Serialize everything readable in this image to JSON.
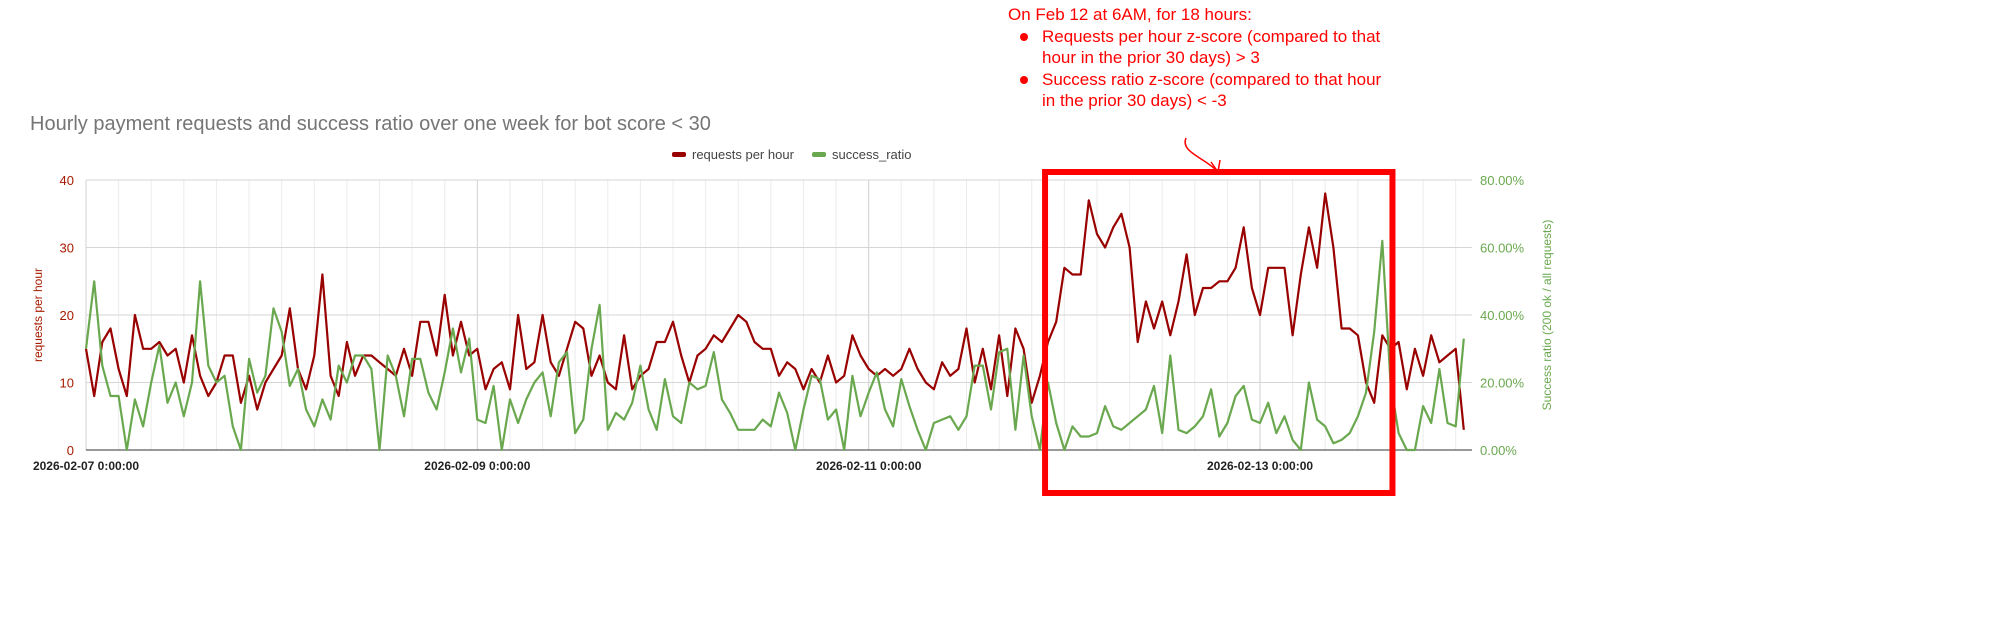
{
  "chart_data": {
    "type": "line",
    "title": "Hourly payment requests and success ratio over one week for bot score < 30",
    "x_start": "2026-02-07 0:00:00",
    "x_unit": "hour",
    "x_tick_labels": [
      "2026-02-07 0:00:00",
      "2026-02-09 0:00:00",
      "2026-02-11 0:00:00",
      "2026-02-13 0:00:00"
    ],
    "y_left": {
      "label": "requests per hour",
      "range": [
        0,
        40
      ],
      "ticks": [
        "0",
        "10",
        "20",
        "30",
        "40"
      ]
    },
    "y_right": {
      "label": "Success ratio (200 ok / all requests)",
      "range": [
        0,
        80
      ],
      "ticks": [
        "0.00%",
        "20.00%",
        "40.00%",
        "60.00%",
        "80.00%"
      ]
    },
    "grid": true,
    "legend_position": "top",
    "series": [
      {
        "name": "requests per hour",
        "axis": "left",
        "color": "#990000",
        "values": [
          15,
          8,
          16,
          18,
          12,
          8,
          20,
          15,
          15,
          16,
          14,
          15,
          10,
          17,
          11,
          8,
          10,
          14,
          14,
          7,
          11,
          6,
          10,
          12,
          14,
          21,
          12,
          9,
          14,
          26,
          11,
          8,
          16,
          11,
          14,
          14,
          13,
          12,
          11,
          15,
          11,
          19,
          19,
          14,
          23,
          14,
          19,
          14,
          15,
          9,
          12,
          13,
          9,
          20,
          12,
          13,
          20,
          13,
          11,
          15,
          19,
          18,
          11,
          14,
          10,
          9,
          17,
          9,
          11,
          12,
          16,
          16,
          19,
          14,
          10,
          14,
          15,
          17,
          16,
          18,
          20,
          19,
          16,
          15,
          15,
          11,
          13,
          12,
          9,
          12,
          10,
          14,
          10,
          11,
          17,
          14,
          12,
          11,
          12,
          11,
          12,
          15,
          12,
          10,
          9,
          13,
          11,
          12,
          18,
          10,
          15,
          9,
          17,
          8,
          18,
          15,
          7,
          11,
          16,
          19,
          27,
          26,
          26,
          37,
          32,
          30,
          33,
          35,
          30,
          16,
          22,
          18,
          22,
          17,
          22,
          29,
          20,
          24,
          24,
          25,
          25,
          27,
          33,
          24,
          20,
          27,
          27,
          27,
          17,
          26,
          33,
          27,
          38,
          30,
          18,
          18,
          17,
          10,
          7,
          17,
          15,
          16,
          9,
          15,
          11,
          17,
          13,
          14,
          15,
          3
        ]
      },
      {
        "name": "success_ratio",
        "axis": "right",
        "unit": "percent",
        "color": "#6aa84f",
        "values": [
          30,
          50,
          25,
          16,
          16,
          0,
          15,
          7,
          20,
          31,
          14,
          20,
          10,
          20,
          50,
          25,
          20,
          22,
          7,
          0,
          27,
          17,
          22,
          42,
          35,
          19,
          24,
          12,
          7,
          15,
          9,
          25,
          20,
          28,
          28,
          24,
          0,
          28,
          22,
          10,
          27,
          27,
          17,
          12,
          23,
          36,
          23,
          33,
          9,
          8,
          19,
          0,
          15,
          8,
          15,
          20,
          23,
          10,
          26,
          29,
          5,
          9,
          30,
          43,
          6,
          11,
          9,
          14,
          25,
          12,
          6,
          21,
          10,
          8,
          20,
          18,
          19,
          29,
          15,
          11,
          6,
          6,
          6,
          9,
          7,
          17,
          11,
          0,
          12,
          22,
          21,
          9,
          12,
          0,
          22,
          10,
          17,
          23,
          12,
          7,
          21,
          13,
          6,
          0,
          8,
          9,
          10,
          6,
          10,
          25,
          25,
          12,
          29,
          30,
          6,
          28,
          10,
          0,
          20,
          8,
          0,
          7,
          4,
          4,
          5,
          13,
          7,
          6,
          8,
          10,
          12,
          19,
          5,
          28,
          6,
          5,
          7,
          10,
          18,
          4,
          8,
          16,
          19,
          9,
          8,
          14,
          5,
          10,
          3,
          0,
          20,
          9,
          7,
          2,
          3,
          5,
          10,
          17,
          35,
          62,
          20,
          5,
          0,
          0,
          13,
          8,
          24,
          8,
          7,
          33
        ]
      }
    ],
    "highlight": {
      "start_hour_index": 118,
      "end_hour_index": 160,
      "color": "#ff0000"
    }
  },
  "annotation": {
    "heading": "On Feb 12 at 6AM, for 18 hours:",
    "bullets": [
      "Requests per hour z-score (compared to that hour in the prior 30 days)  > 3",
      "Success ratio z-score (compared to that hour in the prior 30 days) < -3"
    ]
  }
}
